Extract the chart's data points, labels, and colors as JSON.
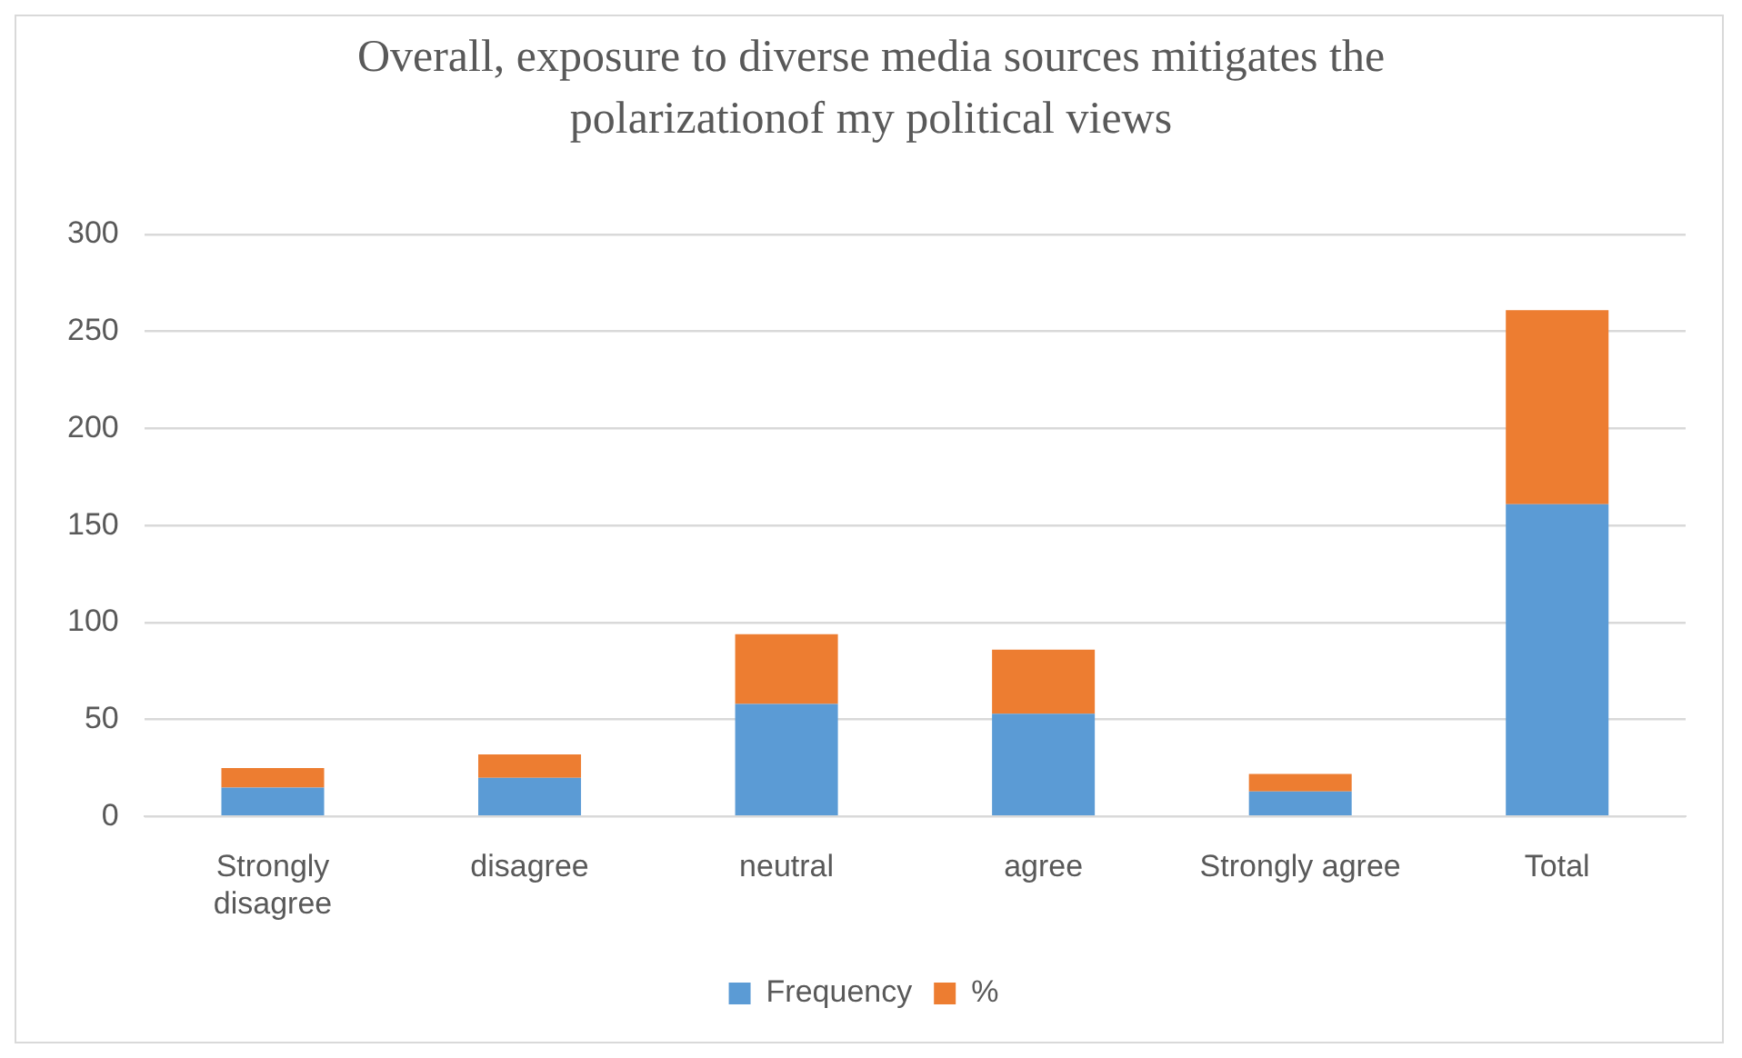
{
  "chart_data": {
    "type": "bar",
    "title": "Overall, exposure to diverse media sources mitigates the polarizationof my political views",
    "categories": [
      "Strongly disagree",
      "disagree",
      "neutral",
      "agree",
      "Strongly agree",
      "Total"
    ],
    "series": [
      {
        "name": "Frequency",
        "color": "#5b9bd5",
        "values": [
          15,
          20,
          58,
          53,
          13,
          161
        ]
      },
      {
        "name": "%",
        "color": "#ed7d31",
        "values": [
          10,
          12,
          36,
          33,
          9,
          100
        ]
      }
    ],
    "stacked": true,
    "ylim": [
      0,
      300
    ],
    "yticks": [
      0,
      50,
      100,
      150,
      200,
      250,
      300
    ],
    "grid": "y",
    "legend": "bottom"
  }
}
